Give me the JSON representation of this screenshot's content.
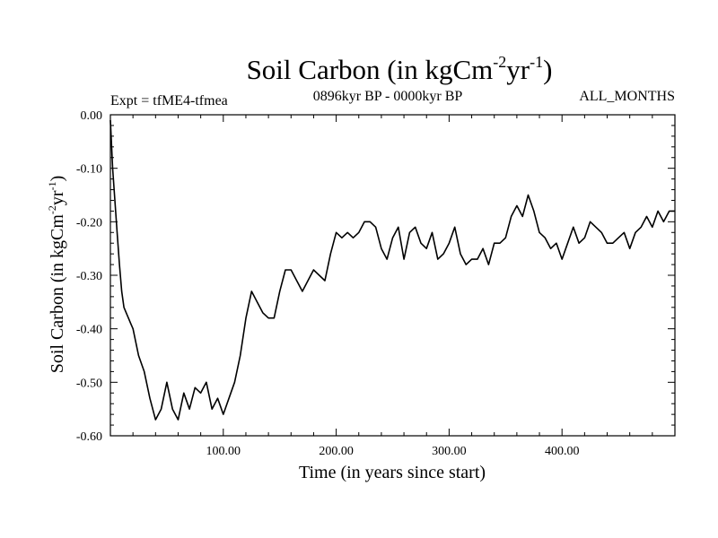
{
  "chart_data": {
    "type": "line",
    "title": {
      "main": "Soil Carbon (in kgCm",
      "exp1": "-2",
      "mid": "yr",
      "exp2": "-1",
      "end": ")"
    },
    "subtitle_left": "Expt = tfME4-tfmea",
    "subtitle_center": "0896kyr BP - 0000kyr BP",
    "subtitle_right": "ALL_MONTHS",
    "xlabel": "Time (in years since start)",
    "ylabel": {
      "main": "Soil Carbon (in kgCm",
      "exp1": "-2",
      "mid": "yr",
      "exp2": "-1",
      "end": ")"
    },
    "xlim": [
      0,
      500
    ],
    "ylim": [
      -0.6,
      0.0
    ],
    "xticks": [
      100,
      200,
      300,
      400
    ],
    "xtick_labels": [
      "100.00",
      "200.00",
      "300.00",
      "400.00"
    ],
    "yticks": [
      0.0,
      -0.1,
      -0.2,
      -0.3,
      -0.4,
      -0.5,
      -0.6
    ],
    "ytick_labels": [
      "0.00",
      "-0.10",
      "-0.20",
      "-0.30",
      "-0.40",
      "-0.50",
      "-0.60"
    ],
    "series": [
      {
        "name": "Soil Carbon",
        "x": [
          0,
          2,
          4,
          6,
          8,
          10,
          12,
          14,
          16,
          18,
          20,
          25,
          30,
          35,
          40,
          45,
          50,
          55,
          60,
          65,
          70,
          75,
          80,
          85,
          90,
          95,
          100,
          105,
          110,
          115,
          120,
          125,
          130,
          135,
          140,
          145,
          150,
          155,
          160,
          165,
          170,
          175,
          180,
          185,
          190,
          195,
          200,
          205,
          210,
          215,
          220,
          225,
          230,
          235,
          240,
          245,
          250,
          255,
          260,
          265,
          270,
          275,
          280,
          285,
          290,
          295,
          300,
          305,
          310,
          315,
          320,
          325,
          330,
          335,
          340,
          345,
          350,
          355,
          360,
          365,
          370,
          375,
          380,
          385,
          390,
          395,
          400,
          405,
          410,
          415,
          420,
          425,
          430,
          435,
          440,
          445,
          450,
          455,
          460,
          465,
          470,
          475,
          480,
          485,
          490,
          495,
          500
        ],
        "y": [
          -0.01,
          -0.1,
          -0.16,
          -0.22,
          -0.28,
          -0.33,
          -0.36,
          -0.37,
          -0.38,
          -0.39,
          -0.4,
          -0.45,
          -0.48,
          -0.53,
          -0.57,
          -0.55,
          -0.5,
          -0.55,
          -0.57,
          -0.52,
          -0.55,
          -0.51,
          -0.52,
          -0.5,
          -0.55,
          -0.53,
          -0.56,
          -0.53,
          -0.5,
          -0.45,
          -0.38,
          -0.33,
          -0.35,
          -0.37,
          -0.38,
          -0.38,
          -0.33,
          -0.29,
          -0.29,
          -0.31,
          -0.33,
          -0.31,
          -0.29,
          -0.3,
          -0.31,
          -0.26,
          -0.22,
          -0.23,
          -0.22,
          -0.23,
          -0.22,
          -0.2,
          -0.2,
          -0.21,
          -0.25,
          -0.27,
          -0.23,
          -0.21,
          -0.27,
          -0.22,
          -0.21,
          -0.24,
          -0.25,
          -0.22,
          -0.27,
          -0.26,
          -0.24,
          -0.21,
          -0.26,
          -0.28,
          -0.27,
          -0.27,
          -0.25,
          -0.28,
          -0.24,
          -0.24,
          -0.23,
          -0.19,
          -0.17,
          -0.19,
          -0.15,
          -0.18,
          -0.22,
          -0.23,
          -0.25,
          -0.24,
          -0.27,
          -0.24,
          -0.21,
          -0.24,
          -0.23,
          -0.2,
          -0.21,
          -0.22,
          -0.24,
          -0.24,
          -0.23,
          -0.22,
          -0.25,
          -0.22,
          -0.21,
          -0.19,
          -0.21,
          -0.18,
          -0.2,
          -0.18,
          -0.18
        ]
      }
    ],
    "grid": false,
    "color": "#000000"
  }
}
